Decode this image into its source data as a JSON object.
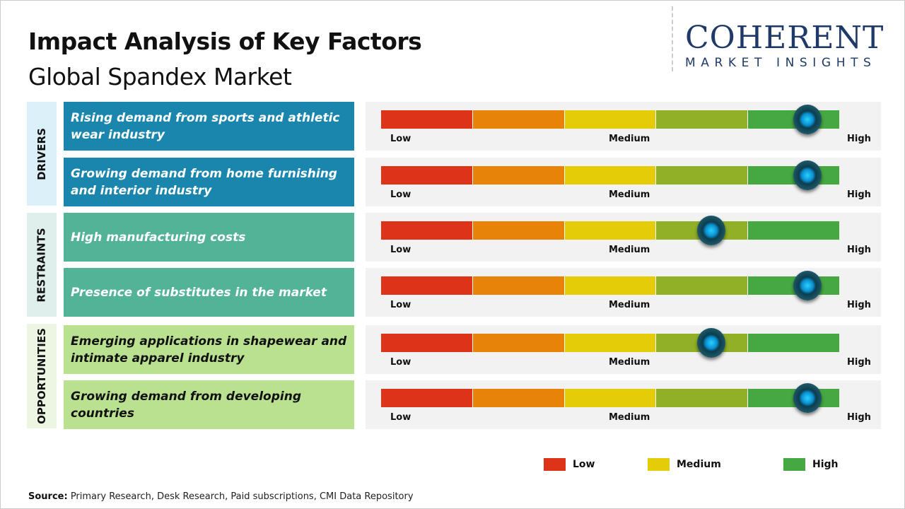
{
  "header": {
    "title": "Impact Analysis of Key Factors",
    "subtitle": "Global Spandex Market"
  },
  "logo": {
    "main": "COHERENT",
    "sub": "MARKET INSIGHTS"
  },
  "colors": {
    "segments": [
      "#dd3319",
      "#e8830a",
      "#e5cc08",
      "#92b027",
      "#46a843"
    ],
    "drivers": "#1a86ad",
    "restraints": "#53b397",
    "opportunities": "#b9e18f",
    "drivers_label_bg": "#dcf0fa",
    "restraints_label_bg": "#dff0ec",
    "opportunities_label_bg": "#ecf6e3"
  },
  "chart_data": {
    "type": "gauge",
    "scale": {
      "min": 0,
      "max": 1,
      "labels": [
        "Low",
        "Medium",
        "High"
      ]
    },
    "groups": [
      {
        "name": "DRIVERS",
        "factors": [
          {
            "label": "Rising demand from sports and athletic wear industry",
            "impact": 0.93
          },
          {
            "label": "Growing demand from home furnishing and interior industry",
            "impact": 0.93
          }
        ]
      },
      {
        "name": "RESTRAINTS",
        "factors": [
          {
            "label": "High manufacturing costs",
            "impact": 0.72
          },
          {
            "label": "Presence of substitutes in the market",
            "impact": 0.93
          }
        ]
      },
      {
        "name": "OPPORTUNITIES",
        "factors": [
          {
            "label": "Emerging applications in shapewear and intimate apparel industry",
            "impact": 0.72
          },
          {
            "label": "Growing demand from developing countries",
            "impact": 0.93
          }
        ]
      }
    ]
  },
  "legend": [
    {
      "label": "Low",
      "color": "#dd3319"
    },
    {
      "label": "Medium",
      "color": "#e5cc08"
    },
    {
      "label": "High",
      "color": "#46a843"
    }
  ],
  "source": {
    "prefix": "Source:",
    "text": " Primary Research, Desk Research, Paid subscriptions, CMI Data Repository"
  }
}
